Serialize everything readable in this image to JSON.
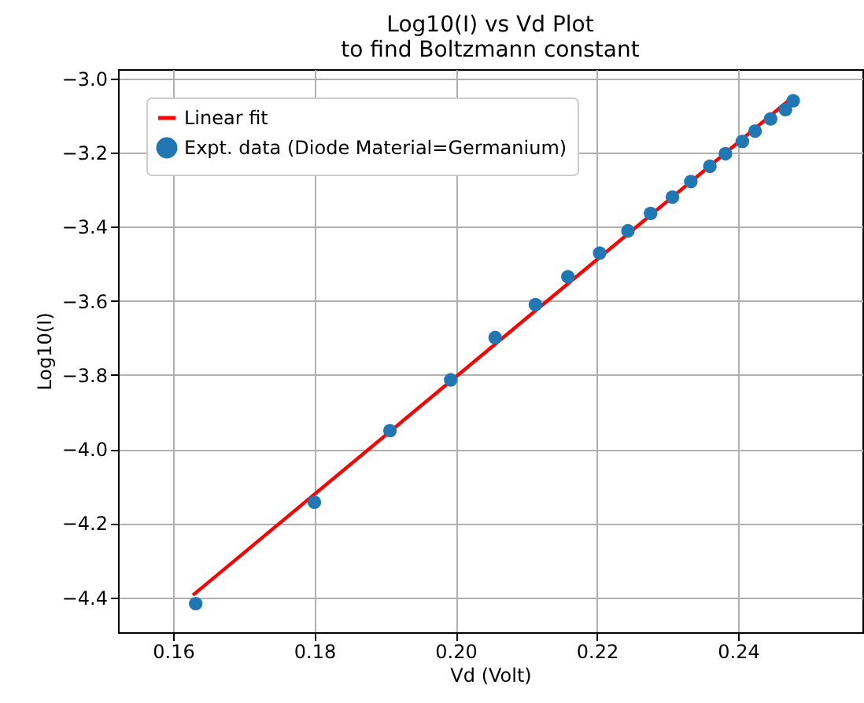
{
  "chart_data": {
    "type": "scatter",
    "title": "Log10(I) vs Vd Plot\nto find Boltzmann constant",
    "xlabel": "Vd (Volt)",
    "ylabel": "Log10(I)",
    "xlim": [
      0.1522,
      0.2576
    ],
    "ylim": [
      -4.494,
      -2.975
    ],
    "xticks": [
      0.16,
      0.18,
      {
        "value": 0.2,
        "label": "0.20"
      },
      0.22,
      0.24
    ],
    "yticks": [
      {
        "value": -4.4,
        "label": "−4.4"
      },
      {
        "value": -4.2,
        "label": "−4.2"
      },
      {
        "value": -4.0,
        "label": "−4.0"
      },
      {
        "value": -3.8,
        "label": "−3.8"
      },
      {
        "value": -3.6,
        "label": "−3.6"
      },
      {
        "value": -3.4,
        "label": "−3.4"
      },
      {
        "value": -3.2,
        "label": "−3.2"
      },
      {
        "value": -3.0,
        "label": "−3.0"
      }
    ],
    "grid": true,
    "legend": "top left",
    "series": [
      {
        "name": "Linear fit",
        "type": "line",
        "color": "#ff0000",
        "x": [
          0.1628,
          0.248
        ],
        "values": [
          -4.394,
          -3.046
        ]
      },
      {
        "name": "Expt. data (Diode Material=Germanium)",
        "type": "scatter",
        "marker": "circle",
        "color": "#1f77b4",
        "x": [
          0.1632,
          0.18,
          0.1907,
          0.1993,
          0.2056,
          0.2113,
          0.2159,
          0.2204,
          0.2244,
          0.2276,
          0.2307,
          0.2333,
          0.236,
          0.2382,
          0.2406,
          0.2424,
          0.2446,
          0.2467,
          0.2478
        ],
        "values": [
          -4.417,
          -4.143,
          -3.95,
          -3.813,
          -3.699,
          -3.61,
          -3.535,
          -3.471,
          -3.411,
          -3.364,
          -3.32,
          -3.278,
          -3.237,
          -3.203,
          -3.17,
          -3.142,
          -3.109,
          -3.084,
          -3.06
        ]
      }
    ]
  }
}
